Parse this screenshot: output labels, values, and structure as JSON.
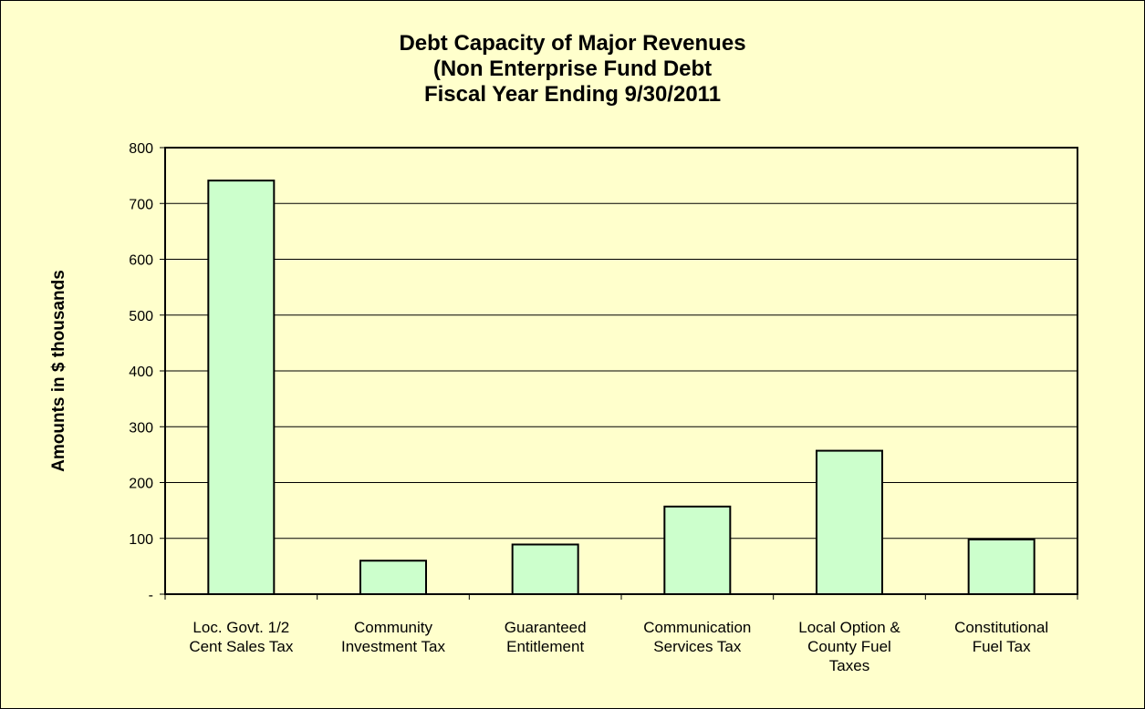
{
  "chart_data": {
    "type": "bar",
    "title": [
      "Debt Capacity of Major Revenues",
      "(Non Enterprise Fund Debt",
      "Fiscal Year Ending 9/30/2011"
    ],
    "xlabel": "",
    "ylabel": "Amounts in $ thousands",
    "ylim": [
      0,
      800
    ],
    "yticks": [
      0,
      100,
      200,
      300,
      400,
      500,
      600,
      700,
      800
    ],
    "ytick_labels": [
      "-",
      "100",
      "200",
      "300",
      "400",
      "500",
      "600",
      "700",
      "800"
    ],
    "grid": true,
    "legend": "none",
    "categories": [
      [
        "Loc. Govt. 1/2",
        "Cent Sales Tax"
      ],
      [
        "Community",
        "Investment Tax"
      ],
      [
        "Guaranteed",
        "Entitlement"
      ],
      [
        "Communication",
        "Services Tax"
      ],
      [
        "Local Option &",
        "County Fuel",
        "Taxes"
      ],
      [
        "Constitutional",
        "Fuel Tax"
      ]
    ],
    "values": [
      741,
      60,
      89,
      157,
      257,
      98
    ],
    "colors": {
      "bar_fill": "#ccffcc",
      "bar_stroke": "#000000",
      "plot_background": "#ffffcc",
      "gridline": "#000000"
    }
  }
}
